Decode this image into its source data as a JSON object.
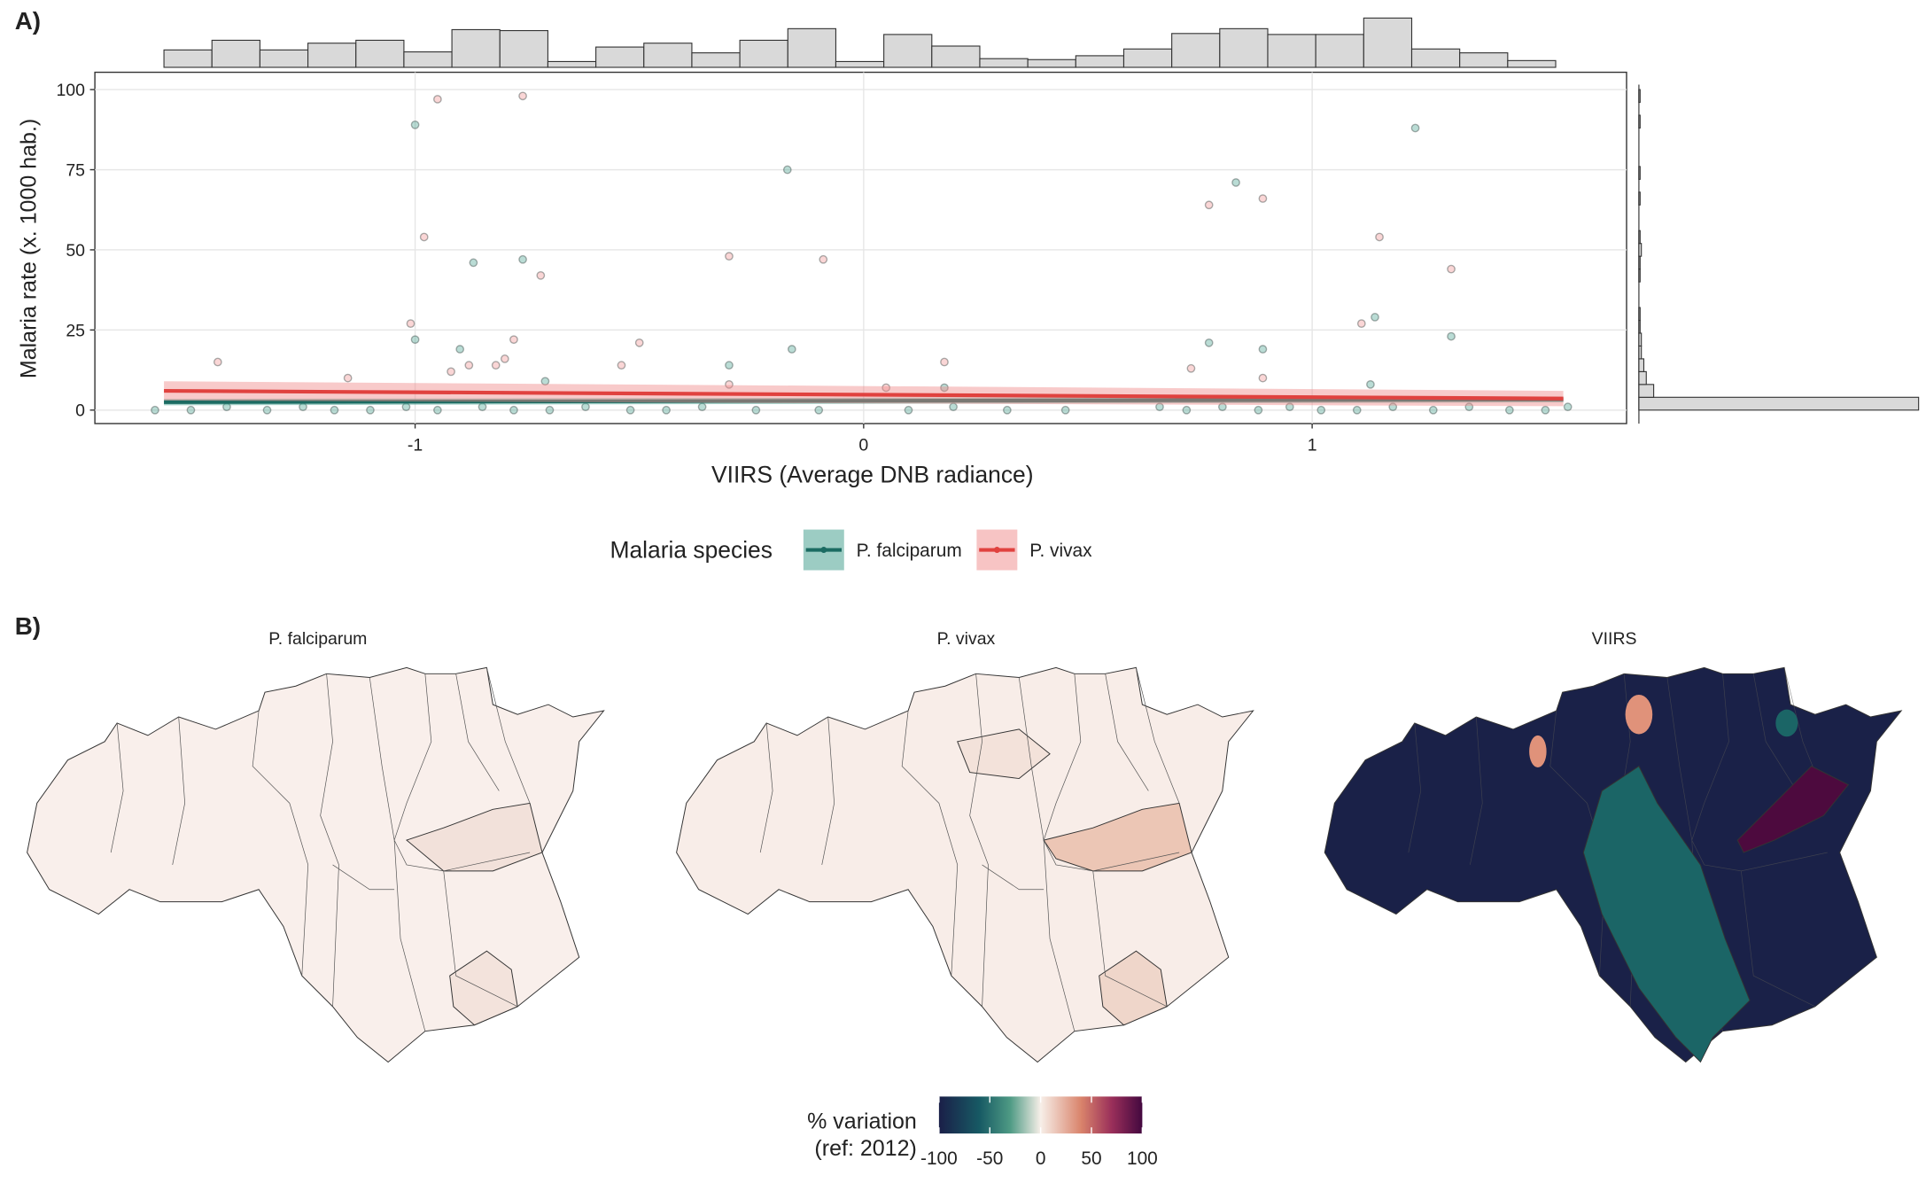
{
  "chart_data": {
    "type": "scatter",
    "panel_label": "A)",
    "x_label": "VIIRS (Average DNB radiance)",
    "y_label": "Malaria rate (x. 1000 hab.)",
    "xlim": [
      -1.714,
      1.701
    ],
    "ylim": [
      -4.2,
      105.4
    ],
    "xticks": [
      -1,
      0,
      1
    ],
    "yticks": [
      0,
      25,
      50,
      75,
      100
    ],
    "grid": true,
    "legend_title": "Malaria species",
    "legend_position": "bottom",
    "series": [
      {
        "name": "P. falciparum",
        "color": "#1b6b62",
        "point_color": "#3a9a88",
        "x": [
          -1.0,
          -0.17,
          -0.87,
          -0.76,
          -1.0,
          -0.9,
          -0.16,
          -0.3,
          0.77,
          0.83,
          0.89,
          1.14,
          1.23,
          1.31,
          -0.71,
          1.13,
          0.18,
          -1.58,
          -1.5,
          -1.42,
          -1.33,
          -1.25,
          -1.18,
          -1.1,
          -1.02,
          -0.95,
          -0.85,
          -0.78,
          -0.7,
          -0.62,
          -0.52,
          -0.44,
          -0.36,
          -0.24,
          -0.1,
          0.1,
          0.2,
          0.32,
          0.45,
          0.66,
          0.72,
          0.8,
          0.88,
          0.95,
          1.02,
          1.1,
          1.18,
          1.27,
          1.35,
          1.44,
          1.52,
          1.57
        ],
        "values": [
          89,
          75,
          46,
          47,
          22,
          19,
          19,
          14,
          21,
          71,
          19,
          29,
          88,
          23,
          9,
          8,
          7,
          0,
          0,
          1,
          0,
          1,
          0,
          0,
          1,
          0,
          1,
          0,
          0,
          1,
          0,
          0,
          1,
          0,
          0,
          0,
          1,
          0,
          0,
          1,
          0,
          1,
          0,
          1,
          0,
          0,
          1,
          0,
          1,
          0,
          0,
          1
        ],
        "fit_x": [
          -1.56,
          1.56
        ],
        "fit": [
          2.5,
          3.3
        ],
        "fit_low": [
          1.5,
          2.4
        ],
        "fit_high": [
          3.5,
          4.2
        ]
      },
      {
        "name": "P. vivax",
        "color": "#e0423f",
        "point_color": "#f08a8a",
        "x": [
          -1.44,
          -0.95,
          -0.76,
          -1.01,
          -0.98,
          -0.72,
          -0.3,
          -0.09,
          -0.5,
          -0.82,
          -0.78,
          0.77,
          0.89,
          1.15,
          1.11,
          1.31,
          -0.54,
          0.18,
          -0.3,
          0.89,
          -1.15,
          -0.92,
          -0.88,
          -0.8,
          0.73,
          0.05
        ],
        "values": [
          15,
          97,
          98,
          27,
          54,
          42,
          48,
          47,
          21,
          14,
          22,
          64,
          66,
          54,
          27,
          44,
          14,
          15,
          8,
          10,
          10,
          12,
          14,
          16,
          13,
          7
        ],
        "fit_x": [
          -1.56,
          1.56
        ],
        "fit": [
          6,
          3.6
        ],
        "fit_low": [
          3,
          1.2
        ],
        "fit_high": [
          9,
          6
        ]
      }
    ],
    "histogram_x": {
      "bins": [
        -1.56,
        -1.453,
        -1.346,
        -1.239,
        -1.132,
        -1.025,
        -0.918,
        -0.811,
        -0.704,
        -0.597,
        -0.49,
        -0.383,
        -0.276,
        -0.169,
        -0.062,
        0.045,
        0.152,
        0.259,
        0.366,
        0.473,
        0.58,
        0.687,
        0.794,
        0.901,
        1.008,
        1.115,
        1.222,
        1.329,
        1.436,
        1.543
      ],
      "counts": [
        18,
        28,
        18,
        25,
        28,
        16,
        39,
        38,
        6,
        21,
        25,
        15,
        28,
        40,
        6,
        34,
        22,
        9,
        8,
        12,
        19,
        35,
        40,
        34,
        34,
        51,
        19,
        15,
        7
      ]
    },
    "histogram_y": {
      "bins": [
        0,
        4,
        8,
        12,
        16,
        20,
        24,
        28,
        32,
        36,
        40,
        44,
        48,
        52,
        56,
        60,
        64,
        68,
        72,
        76,
        80,
        84,
        88,
        92,
        96,
        100
      ],
      "counts": [
        227,
        12,
        6,
        4,
        2,
        2,
        1,
        1,
        0,
        0,
        1,
        1,
        2,
        1,
        0,
        0,
        1,
        0,
        1,
        0,
        0,
        0,
        1,
        0,
        1
      ]
    }
  },
  "maps": {
    "panel_label": "B)",
    "titles": [
      "P. falciparum",
      "P. vivax",
      "VIIRS"
    ],
    "colorbar": {
      "title": [
        "% variation",
        "(ref: 2012)"
      ],
      "lim": [
        -100,
        100
      ],
      "ticks": [
        -100,
        -50,
        0,
        50,
        100
      ]
    }
  }
}
